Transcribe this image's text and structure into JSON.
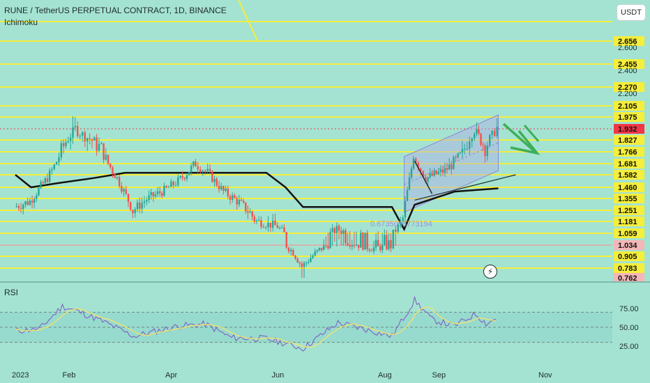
{
  "header": {
    "title": "RUNE / TetherUS PERPETUAL CONTRACT, 1D, BINANCE",
    "indicator": "Ichimoku",
    "currency": "USDT"
  },
  "rsi_panel": {
    "title": "RSI"
  },
  "fib_text": "0.6735055773194",
  "colors": {
    "background": "#a4e3d2",
    "level_line": "#f5ee3a",
    "up_candle": "#26a69a",
    "down_candle": "#ef5350",
    "current_price_tag": "#f23645",
    "rsi_line": "#7e57c2",
    "rsi_ma": "#f5e36a",
    "arrow": "#3fae5a"
  },
  "chart_data": [
    {
      "type": "candlestick",
      "title": "RUNE / TetherUS PERPETUAL CONTRACT, 1D, BINANCE",
      "x_ticks": [
        "2023",
        "Feb",
        "Apr",
        "Jun",
        "Aug",
        "Sep",
        "Nov"
      ],
      "y_tick_labels": [
        "2.656",
        "2.600",
        "2.455",
        "2.400",
        "2.270",
        "2.200",
        "2.105",
        "1.975",
        "1.932",
        "1.827",
        "1.766",
        "1.681",
        "1.582",
        "1.460",
        "1.355",
        "1.251",
        "1.181",
        "1.059",
        "1.034",
        "0.905",
        "0.783",
        "0.762"
      ],
      "horizontal_levels": [
        2.81,
        2.656,
        2.455,
        2.27,
        2.105,
        1.975,
        1.827,
        1.766,
        1.681,
        1.582,
        1.46,
        1.355,
        1.251,
        1.181,
        1.059,
        0.905,
        0.783
      ],
      "current_price": 1.932,
      "marked_price": 1.034,
      "low_label": 0.762,
      "close_series": [
        {
          "x": "2023-01-01",
          "y": 1.28
        },
        {
          "x": "2023-01-10",
          "y": 1.33
        },
        {
          "x": "2023-01-20",
          "y": 1.55
        },
        {
          "x": "2023-01-28",
          "y": 1.77
        },
        {
          "x": "2023-02-05",
          "y": 1.92
        },
        {
          "x": "2023-02-12",
          "y": 1.85
        },
        {
          "x": "2023-02-20",
          "y": 1.78
        },
        {
          "x": "2023-03-01",
          "y": 1.55
        },
        {
          "x": "2023-03-10",
          "y": 1.25
        },
        {
          "x": "2023-03-18",
          "y": 1.35
        },
        {
          "x": "2023-03-28",
          "y": 1.43
        },
        {
          "x": "2023-04-05",
          "y": 1.52
        },
        {
          "x": "2023-04-15",
          "y": 1.68
        },
        {
          "x": "2023-04-22",
          "y": 1.6
        },
        {
          "x": "2023-05-01",
          "y": 1.42
        },
        {
          "x": "2023-05-10",
          "y": 1.32
        },
        {
          "x": "2023-05-20",
          "y": 1.18
        },
        {
          "x": "2023-06-01",
          "y": 1.13
        },
        {
          "x": "2023-06-10",
          "y": 0.95
        },
        {
          "x": "2023-06-15",
          "y": 0.8
        },
        {
          "x": "2023-06-25",
          "y": 0.98
        },
        {
          "x": "2023-07-05",
          "y": 1.1
        },
        {
          "x": "2023-07-15",
          "y": 1.05
        },
        {
          "x": "2023-07-25",
          "y": 1.0
        },
        {
          "x": "2023-08-05",
          "y": 1.02
        },
        {
          "x": "2023-08-12",
          "y": 1.2
        },
        {
          "x": "2023-08-18",
          "y": 1.75
        },
        {
          "x": "2023-08-25",
          "y": 1.55
        },
        {
          "x": "2023-09-05",
          "y": 1.62
        },
        {
          "x": "2023-09-15",
          "y": 1.75
        },
        {
          "x": "2023-09-22",
          "y": 1.92
        },
        {
          "x": "2023-09-28",
          "y": 1.78
        },
        {
          "x": "2023-10-05",
          "y": 1.932
        }
      ]
    },
    {
      "type": "line",
      "title": "RSI",
      "y_ticks": [
        75.0,
        50.0,
        25.0
      ],
      "ylim": [
        15,
        90
      ],
      "bands": [
        30,
        70
      ],
      "series": [
        {
          "values": [
            {
              "x": "2023-01-01",
              "y": 45
            },
            {
              "x": "2023-01-15",
              "y": 48
            },
            {
              "x": "2023-01-28",
              "y": 78
            },
            {
              "x": "2023-02-05",
              "y": 72
            },
            {
              "x": "2023-02-20",
              "y": 58
            },
            {
              "x": "2023-03-10",
              "y": 38
            },
            {
              "x": "2023-04-05",
              "y": 52
            },
            {
              "x": "2023-04-20",
              "y": 54
            },
            {
              "x": "2023-05-05",
              "y": 36
            },
            {
              "x": "2023-05-25",
              "y": 35
            },
            {
              "x": "2023-06-15",
              "y": 22
            },
            {
              "x": "2023-07-05",
              "y": 56
            },
            {
              "x": "2023-07-25",
              "y": 45
            },
            {
              "x": "2023-08-05",
              "y": 38
            },
            {
              "x": "2023-08-18",
              "y": 86
            },
            {
              "x": "2023-08-28",
              "y": 60
            },
            {
              "x": "2023-09-10",
              "y": 52
            },
            {
              "x": "2023-09-22",
              "y": 68
            },
            {
              "x": "2023-09-28",
              "y": 55
            },
            {
              "x": "2023-10-05",
              "y": 63
            }
          ]
        }
      ]
    }
  ]
}
